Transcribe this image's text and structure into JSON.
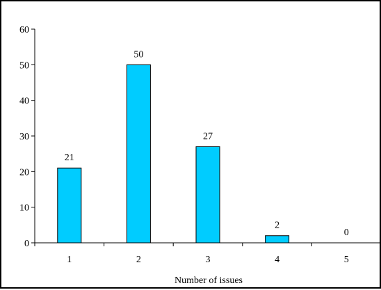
{
  "chart_data": {
    "type": "bar",
    "categories": [
      "1",
      "2",
      "3",
      "4",
      "5"
    ],
    "values": [
      21,
      50,
      27,
      2,
      0
    ],
    "data_labels": [
      "21",
      "50",
      "27",
      "2",
      "0"
    ],
    "title": "",
    "xlabel": "Number of issues",
    "ylabel": "",
    "ylim": [
      0,
      60
    ],
    "yticks": [
      "0",
      "10",
      "20",
      "30",
      "40",
      "50",
      "60"
    ],
    "grid": false,
    "legend": "none",
    "bar_color": "#00CCFF",
    "bar_edge_color": "#000000"
  }
}
